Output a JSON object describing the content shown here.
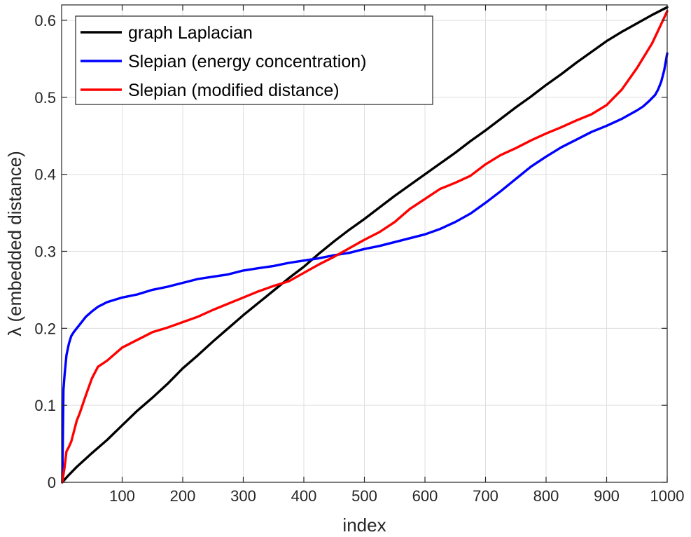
{
  "chart_data": {
    "type": "line",
    "title": "",
    "xlabel": "index",
    "ylabel": "λ (embedded distance)",
    "xlim": [
      0,
      1000
    ],
    "ylim": [
      0,
      0.62
    ],
    "xticks": [
      100,
      200,
      300,
      400,
      500,
      600,
      700,
      800,
      900,
      1000
    ],
    "xtick_labels": [
      "100",
      "200",
      "300",
      "400",
      "500",
      "600",
      "700",
      "800",
      "900",
      "1000"
    ],
    "yticks": [
      0,
      0.1,
      0.2,
      0.3,
      0.4,
      0.5,
      0.6
    ],
    "ytick_labels": [
      "0",
      "0.1",
      "0.2",
      "0.3",
      "0.4",
      "0.5",
      "0.6"
    ],
    "grid": true,
    "legend_position": "top-left",
    "series": [
      {
        "name": "graph Laplacian",
        "color": "#000000",
        "x": [
          1,
          10,
          25,
          50,
          75,
          100,
          125,
          150,
          175,
          200,
          225,
          250,
          275,
          300,
          325,
          350,
          375,
          400,
          425,
          450,
          475,
          500,
          525,
          550,
          575,
          600,
          625,
          650,
          675,
          700,
          725,
          750,
          775,
          800,
          825,
          850,
          875,
          900,
          925,
          950,
          975,
          1000
        ],
        "y": [
          0.0,
          0.008,
          0.02,
          0.038,
          0.055,
          0.074,
          0.093,
          0.11,
          0.128,
          0.148,
          0.165,
          0.183,
          0.2,
          0.217,
          0.233,
          0.249,
          0.265,
          0.28,
          0.297,
          0.313,
          0.328,
          0.342,
          0.357,
          0.372,
          0.386,
          0.4,
          0.414,
          0.428,
          0.443,
          0.457,
          0.472,
          0.487,
          0.501,
          0.516,
          0.53,
          0.545,
          0.559,
          0.573,
          0.585,
          0.596,
          0.607,
          0.617
        ]
      },
      {
        "name": "Slepian (energy concentration)",
        "color": "#0000ff",
        "x": [
          1,
          2,
          3,
          5,
          8,
          12,
          16,
          20,
          25,
          30,
          40,
          50,
          60,
          75,
          100,
          125,
          150,
          175,
          200,
          225,
          250,
          275,
          300,
          325,
          350,
          375,
          400,
          425,
          450,
          475,
          500,
          525,
          550,
          575,
          600,
          625,
          650,
          675,
          700,
          725,
          750,
          775,
          800,
          825,
          850,
          875,
          900,
          925,
          950,
          960,
          970,
          980,
          985,
          990,
          995,
          1000
        ],
        "y": [
          0.0,
          0.05,
          0.12,
          0.14,
          0.165,
          0.18,
          0.19,
          0.195,
          0.2,
          0.205,
          0.215,
          0.222,
          0.228,
          0.234,
          0.24,
          0.244,
          0.25,
          0.254,
          0.259,
          0.264,
          0.267,
          0.27,
          0.275,
          0.278,
          0.281,
          0.285,
          0.288,
          0.291,
          0.295,
          0.298,
          0.303,
          0.307,
          0.312,
          0.317,
          0.322,
          0.329,
          0.338,
          0.349,
          0.363,
          0.378,
          0.394,
          0.41,
          0.423,
          0.435,
          0.445,
          0.455,
          0.463,
          0.472,
          0.483,
          0.488,
          0.495,
          0.503,
          0.51,
          0.52,
          0.535,
          0.557
        ]
      },
      {
        "name": "Slepian (modified distance)",
        "color": "#ff0000",
        "x": [
          1,
          3,
          5,
          8,
          12,
          16,
          20,
          25,
          30,
          40,
          50,
          60,
          75,
          100,
          125,
          150,
          175,
          200,
          225,
          250,
          275,
          300,
          325,
          350,
          375,
          400,
          425,
          450,
          475,
          500,
          525,
          550,
          575,
          600,
          625,
          650,
          675,
          700,
          725,
          750,
          775,
          800,
          825,
          850,
          875,
          900,
          925,
          950,
          975,
          990,
          1000
        ],
        "y": [
          0.0,
          0.01,
          0.02,
          0.04,
          0.046,
          0.053,
          0.065,
          0.08,
          0.09,
          0.113,
          0.135,
          0.15,
          0.158,
          0.175,
          0.185,
          0.195,
          0.201,
          0.208,
          0.215,
          0.224,
          0.232,
          0.24,
          0.248,
          0.255,
          0.261,
          0.272,
          0.283,
          0.293,
          0.304,
          0.315,
          0.325,
          0.338,
          0.355,
          0.368,
          0.381,
          0.389,
          0.398,
          0.413,
          0.425,
          0.434,
          0.444,
          0.453,
          0.461,
          0.47,
          0.478,
          0.49,
          0.51,
          0.538,
          0.57,
          0.595,
          0.612
        ]
      }
    ]
  }
}
